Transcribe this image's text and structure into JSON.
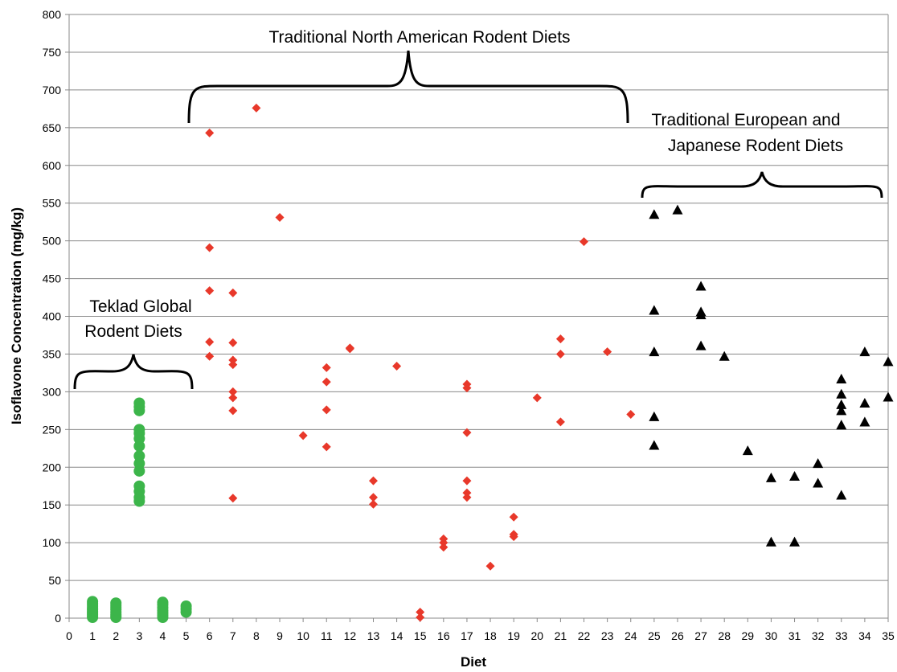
{
  "chart_data": {
    "type": "scatter",
    "xlabel": "Diet",
    "ylabel": "Isoflavone Concentration (mg/kg)",
    "xlim": [
      0,
      35
    ],
    "ylim": [
      0,
      800
    ],
    "xticks": [
      0,
      1,
      2,
      3,
      4,
      5,
      6,
      7,
      8,
      9,
      10,
      11,
      12,
      13,
      14,
      15,
      16,
      17,
      18,
      19,
      20,
      21,
      22,
      23,
      24,
      25,
      26,
      27,
      28,
      29,
      30,
      31,
      32,
      33,
      34,
      35
    ],
    "yticks": [
      0,
      50,
      100,
      150,
      200,
      250,
      300,
      350,
      400,
      450,
      500,
      550,
      600,
      650,
      700,
      750,
      800
    ],
    "grid": "horizontal",
    "series": [
      {
        "marker": "circle",
        "color": "#3cb54a",
        "points": [
          [
            1,
            1
          ],
          [
            1,
            3
          ],
          [
            1,
            5
          ],
          [
            1,
            7
          ],
          [
            1,
            9
          ],
          [
            1,
            11
          ],
          [
            1,
            13
          ],
          [
            1,
            16
          ],
          [
            1,
            19
          ],
          [
            1,
            22
          ],
          [
            2,
            1
          ],
          [
            2,
            3
          ],
          [
            2,
            5
          ],
          [
            2,
            8
          ],
          [
            2,
            11
          ],
          [
            2,
            14
          ],
          [
            2,
            17
          ],
          [
            2,
            20
          ],
          [
            3,
            155
          ],
          [
            3,
            160
          ],
          [
            3,
            168
          ],
          [
            3,
            175
          ],
          [
            3,
            195
          ],
          [
            3,
            205
          ],
          [
            3,
            215
          ],
          [
            3,
            228
          ],
          [
            3,
            238
          ],
          [
            3,
            245
          ],
          [
            3,
            250
          ],
          [
            3,
            275
          ],
          [
            3,
            280
          ],
          [
            3,
            285
          ],
          [
            4,
            1
          ],
          [
            4,
            4
          ],
          [
            4,
            7
          ],
          [
            4,
            10
          ],
          [
            4,
            14
          ],
          [
            4,
            18
          ],
          [
            4,
            21
          ],
          [
            5,
            8
          ],
          [
            5,
            12
          ],
          [
            5,
            16
          ]
        ]
      },
      {
        "marker": "diamond",
        "color": "#e8382a",
        "points": [
          [
            6,
            643
          ],
          [
            6,
            491
          ],
          [
            6,
            434
          ],
          [
            6,
            366
          ],
          [
            6,
            347
          ],
          [
            7,
            431
          ],
          [
            7,
            365
          ],
          [
            7,
            342
          ],
          [
            7,
            336
          ],
          [
            7,
            300
          ],
          [
            7,
            292
          ],
          [
            7,
            275
          ],
          [
            7,
            159
          ],
          [
            8,
            676
          ],
          [
            9,
            531
          ],
          [
            10,
            242
          ],
          [
            11,
            332
          ],
          [
            11,
            313
          ],
          [
            11,
            276
          ],
          [
            11,
            227
          ],
          [
            12,
            358
          ],
          [
            12,
            357
          ],
          [
            13,
            182
          ],
          [
            13,
            160
          ],
          [
            13,
            151
          ],
          [
            14,
            334
          ],
          [
            15,
            8
          ],
          [
            15,
            1
          ],
          [
            16,
            105
          ],
          [
            16,
            100
          ],
          [
            16,
            94
          ],
          [
            17,
            310
          ],
          [
            17,
            305
          ],
          [
            17,
            246
          ],
          [
            17,
            182
          ],
          [
            17,
            166
          ],
          [
            17,
            160
          ],
          [
            18,
            69
          ],
          [
            19,
            134
          ],
          [
            19,
            111
          ],
          [
            19,
            108
          ],
          [
            20,
            292
          ],
          [
            21,
            370
          ],
          [
            21,
            350
          ],
          [
            21,
            260
          ],
          [
            22,
            499
          ],
          [
            23,
            353
          ],
          [
            24,
            270
          ]
        ]
      },
      {
        "marker": "triangle",
        "color": "#000000",
        "points": [
          [
            25,
            535
          ],
          [
            25,
            408
          ],
          [
            25,
            353
          ],
          [
            25,
            267
          ],
          [
            25,
            229
          ],
          [
            26,
            541
          ],
          [
            27,
            440
          ],
          [
            27,
            406
          ],
          [
            27,
            402
          ],
          [
            27,
            361
          ],
          [
            28,
            347
          ],
          [
            29,
            222
          ],
          [
            30,
            186
          ],
          [
            30,
            101
          ],
          [
            31,
            188
          ],
          [
            31,
            101
          ],
          [
            32,
            205
          ],
          [
            32,
            179
          ],
          [
            33,
            317
          ],
          [
            33,
            297
          ],
          [
            33,
            283
          ],
          [
            33,
            275
          ],
          [
            33,
            256
          ],
          [
            33,
            163
          ],
          [
            34,
            353
          ],
          [
            34,
            285
          ],
          [
            34,
            260
          ],
          [
            35,
            340
          ],
          [
            35,
            293
          ]
        ]
      }
    ],
    "annotations": [
      {
        "lines": [
          "Traditional North American Rodent Diets"
        ]
      },
      {
        "lines": [
          "Traditional European and",
          "Japanese Rodent Diets"
        ]
      },
      {
        "lines": [
          "Teklad Global",
          "Rodent Diets"
        ]
      }
    ]
  }
}
